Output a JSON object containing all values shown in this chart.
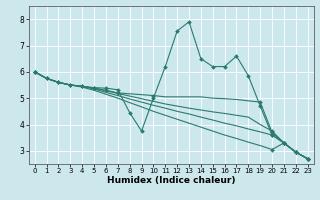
{
  "xlabel": "Humidex (Indice chaleur)",
  "bg_color": "#cce8ec",
  "grid_color": "#ffffff",
  "line_color": "#2a7a70",
  "xlim": [
    -0.5,
    23.5
  ],
  "ylim": [
    2.5,
    8.5
  ],
  "xticks": [
    0,
    1,
    2,
    3,
    4,
    5,
    6,
    7,
    8,
    9,
    10,
    11,
    12,
    13,
    14,
    15,
    16,
    17,
    18,
    19,
    20,
    21,
    22,
    23
  ],
  "yticks": [
    3,
    4,
    5,
    6,
    7,
    8
  ],
  "lines": [
    {
      "x": [
        0,
        1,
        2,
        3,
        4,
        5,
        6,
        7,
        8,
        9,
        10,
        11,
        12,
        13,
        14,
        15,
        16,
        17,
        18,
        19,
        20,
        21,
        22,
        23
      ],
      "y": [
        6.0,
        5.75,
        5.6,
        5.5,
        5.45,
        5.4,
        5.38,
        5.32,
        4.45,
        3.75,
        5.0,
        6.2,
        7.55,
        7.9,
        6.5,
        6.2,
        6.2,
        6.6,
        5.85,
        4.7,
        3.6,
        3.3,
        2.95,
        2.7
      ],
      "mx": [
        0,
        1,
        2,
        3,
        4,
        5,
        6,
        7,
        8,
        9,
        10,
        11,
        12,
        13,
        14,
        15,
        16,
        17,
        18,
        19,
        20,
        21,
        22,
        23
      ],
      "my": [
        6.0,
        5.75,
        5.6,
        5.5,
        5.45,
        5.4,
        5.38,
        5.32,
        4.45,
        3.75,
        5.0,
        6.2,
        7.55,
        7.9,
        6.5,
        6.2,
        6.2,
        6.6,
        5.85,
        4.7,
        3.6,
        3.3,
        2.95,
        2.7
      ]
    },
    {
      "x": [
        0,
        1,
        2,
        3,
        4,
        5,
        6,
        7,
        10,
        11,
        12,
        13,
        14,
        15,
        16,
        17,
        18,
        19,
        20,
        21,
        22,
        23
      ],
      "y": [
        6.0,
        5.75,
        5.6,
        5.5,
        5.45,
        5.38,
        5.3,
        5.2,
        5.1,
        5.05,
        5.05,
        5.05,
        5.05,
        5.0,
        4.98,
        4.95,
        4.9,
        4.85,
        3.7,
        3.3,
        2.95,
        2.7
      ],
      "mx": [
        0,
        1,
        2,
        3,
        4,
        5,
        6,
        7,
        10,
        19,
        20,
        21,
        22,
        23
      ],
      "my": [
        6.0,
        5.75,
        5.6,
        5.5,
        5.45,
        5.38,
        5.3,
        5.2,
        5.1,
        4.85,
        3.7,
        3.3,
        2.95,
        2.7
      ]
    },
    {
      "x": [
        0,
        1,
        2,
        3,
        4,
        5,
        6,
        7,
        8,
        9,
        10,
        11,
        12,
        13,
        14,
        15,
        16,
        17,
        18,
        19,
        20,
        21,
        22,
        23
      ],
      "y": [
        6.0,
        5.75,
        5.6,
        5.5,
        5.45,
        5.38,
        5.28,
        5.18,
        5.08,
        4.98,
        4.88,
        4.78,
        4.7,
        4.62,
        4.55,
        4.48,
        4.42,
        4.35,
        4.28,
        4.0,
        3.75,
        3.3,
        2.95,
        2.7
      ],
      "mx": [
        0,
        20,
        21,
        22,
        23
      ],
      "my": [
        6.0,
        3.75,
        3.3,
        2.95,
        2.7
      ]
    },
    {
      "x": [
        0,
        1,
        2,
        3,
        4,
        5,
        6,
        7,
        8,
        9,
        10,
        11,
        12,
        13,
        14,
        15,
        16,
        17,
        18,
        19,
        20,
        21,
        22,
        23
      ],
      "y": [
        6.0,
        5.75,
        5.6,
        5.5,
        5.45,
        5.35,
        5.22,
        5.1,
        4.97,
        4.85,
        4.73,
        4.62,
        4.5,
        4.4,
        4.28,
        4.17,
        4.05,
        3.95,
        3.83,
        3.72,
        3.6,
        3.3,
        2.95,
        2.7
      ],
      "mx": [
        0,
        20,
        21,
        22,
        23
      ],
      "my": [
        6.0,
        3.6,
        3.3,
        2.95,
        2.7
      ]
    },
    {
      "x": [
        0,
        1,
        2,
        3,
        4,
        5,
        6,
        7,
        8,
        9,
        10,
        11,
        12,
        13,
        14,
        15,
        16,
        17,
        18,
        19,
        20,
        21,
        22,
        23
      ],
      "y": [
        6.0,
        5.75,
        5.6,
        5.5,
        5.42,
        5.3,
        5.15,
        5.0,
        4.83,
        4.67,
        4.5,
        4.35,
        4.2,
        4.05,
        3.9,
        3.75,
        3.6,
        3.47,
        3.33,
        3.2,
        3.05,
        3.3,
        2.95,
        2.7
      ],
      "mx": [
        0,
        20,
        21,
        22,
        23
      ],
      "my": [
        6.0,
        3.05,
        3.3,
        2.95,
        2.7
      ]
    }
  ],
  "markersize": 2.0,
  "linewidth": 0.8
}
